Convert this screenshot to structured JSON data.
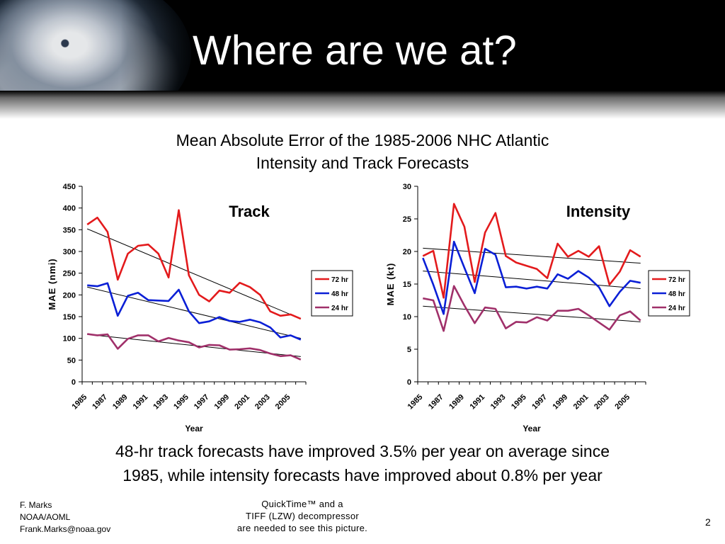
{
  "slide": {
    "title": "Where are we at?",
    "subtitle_line1": "Mean Absolute Error of the 1985-2006 NHC Atlantic",
    "subtitle_line2": "Intensity and Track Forecasts",
    "caption_line1": "48-hr track forecasts have improved 3.5% per year on average since",
    "caption_line2": "1985, while intensity forecasts have improved about 0.8% per year",
    "footer": {
      "author": "F. Marks",
      "org": "NOAA/AOML",
      "email": "Frank.Marks@noaa.gov",
      "placeholder_line1": "QuickTime™ and a",
      "placeholder_line2": "TIFF (LZW) decompressor",
      "placeholder_line3": "are needed to see this picture.",
      "page_number": "2"
    }
  },
  "chart_data": [
    {
      "type": "line",
      "title": "Track",
      "xlabel": "Year",
      "ylabel": "MAE (nmi)",
      "ylim": [
        0,
        450
      ],
      "yticks": [
        0,
        50,
        100,
        150,
        200,
        250,
        300,
        350,
        400,
        450
      ],
      "x": [
        1985,
        1986,
        1987,
        1988,
        1989,
        1990,
        1991,
        1992,
        1993,
        1994,
        1995,
        1996,
        1997,
        1998,
        1999,
        2000,
        2001,
        2002,
        2003,
        2004,
        2005,
        2006
      ],
      "xtick_labels": [
        "1985",
        "1987",
        "1989",
        "1991",
        "1993",
        "1995",
        "1997",
        "1999",
        "2001",
        "2003",
        "2005"
      ],
      "legend_position": "right",
      "series": [
        {
          "name": "72 hr",
          "color": "#e31a1c",
          "values": [
            362,
            378,
            345,
            235,
            295,
            313,
            316,
            295,
            240,
            395,
            245,
            200,
            185,
            210,
            205,
            228,
            218,
            200,
            162,
            152,
            155,
            145
          ]
        },
        {
          "name": "48 hr",
          "color": "#0a1fd6",
          "values": [
            222,
            220,
            227,
            152,
            198,
            205,
            188,
            187,
            186,
            212,
            162,
            135,
            139,
            149,
            140,
            138,
            143,
            137,
            125,
            102,
            107,
            97
          ]
        },
        {
          "name": "24 hr",
          "color": "#a0306a",
          "values": [
            110,
            107,
            109,
            76,
            99,
            107,
            107,
            93,
            101,
            95,
            91,
            79,
            85,
            84,
            74,
            75,
            77,
            73,
            65,
            59,
            61,
            51
          ]
        }
      ],
      "trend_lines": [
        {
          "x": [
            1985,
            2006
          ],
          "values": [
            352,
            145
          ]
        },
        {
          "x": [
            1985,
            2006
          ],
          "values": [
            218,
            100
          ]
        },
        {
          "x": [
            1985,
            2006
          ],
          "values": [
            109,
            58
          ]
        }
      ]
    },
    {
      "type": "line",
      "title": "Intensity",
      "xlabel": "Year",
      "ylabel": "MAE (kt)",
      "ylim": [
        0,
        30
      ],
      "yticks": [
        0,
        5,
        10,
        15,
        20,
        25,
        30
      ],
      "x": [
        1985,
        1986,
        1987,
        1988,
        1989,
        1990,
        1991,
        1992,
        1993,
        1994,
        1995,
        1996,
        1997,
        1998,
        1999,
        2000,
        2001,
        2002,
        2003,
        2004,
        2005,
        2006
      ],
      "xtick_labels": [
        "1985",
        "1987",
        "1989",
        "1991",
        "1993",
        "1995",
        "1997",
        "1999",
        "2001",
        "2003",
        "2005"
      ],
      "legend_position": "right",
      "series": [
        {
          "name": "72 hr",
          "color": "#e31a1c",
          "values": [
            19.3,
            20.1,
            12.9,
            27.3,
            23.8,
            15.3,
            22.9,
            25.9,
            19.3,
            18.3,
            17.8,
            17.3,
            15.9,
            21.2,
            19.2,
            20.1,
            19.2,
            20.8,
            14.9,
            16.9,
            20.2,
            19.2
          ]
        },
        {
          "name": "48 hr",
          "color": "#0a1fd6",
          "values": [
            19.0,
            14.9,
            10.4,
            21.5,
            17.5,
            13.6,
            20.4,
            19.5,
            14.5,
            14.6,
            14.3,
            14.6,
            14.3,
            16.5,
            15.8,
            17.0,
            16.0,
            14.5,
            11.6,
            13.8,
            15.5,
            15.2
          ]
        },
        {
          "name": "24 hr",
          "color": "#a0306a",
          "values": [
            12.8,
            12.5,
            7.8,
            14.7,
            11.7,
            9.0,
            11.4,
            11.2,
            8.2,
            9.2,
            9.1,
            9.9,
            9.4,
            10.9,
            10.9,
            11.2,
            10.2,
            9.1,
            8.0,
            10.2,
            10.8,
            9.4
          ]
        }
      ],
      "trend_lines": [
        {
          "x": [
            1985,
            2006
          ],
          "values": [
            20.5,
            18.2
          ]
        },
        {
          "x": [
            1985,
            2006
          ],
          "values": [
            17.0,
            14.3
          ]
        },
        {
          "x": [
            1985,
            2006
          ],
          "values": [
            11.6,
            9.2
          ]
        }
      ]
    }
  ]
}
